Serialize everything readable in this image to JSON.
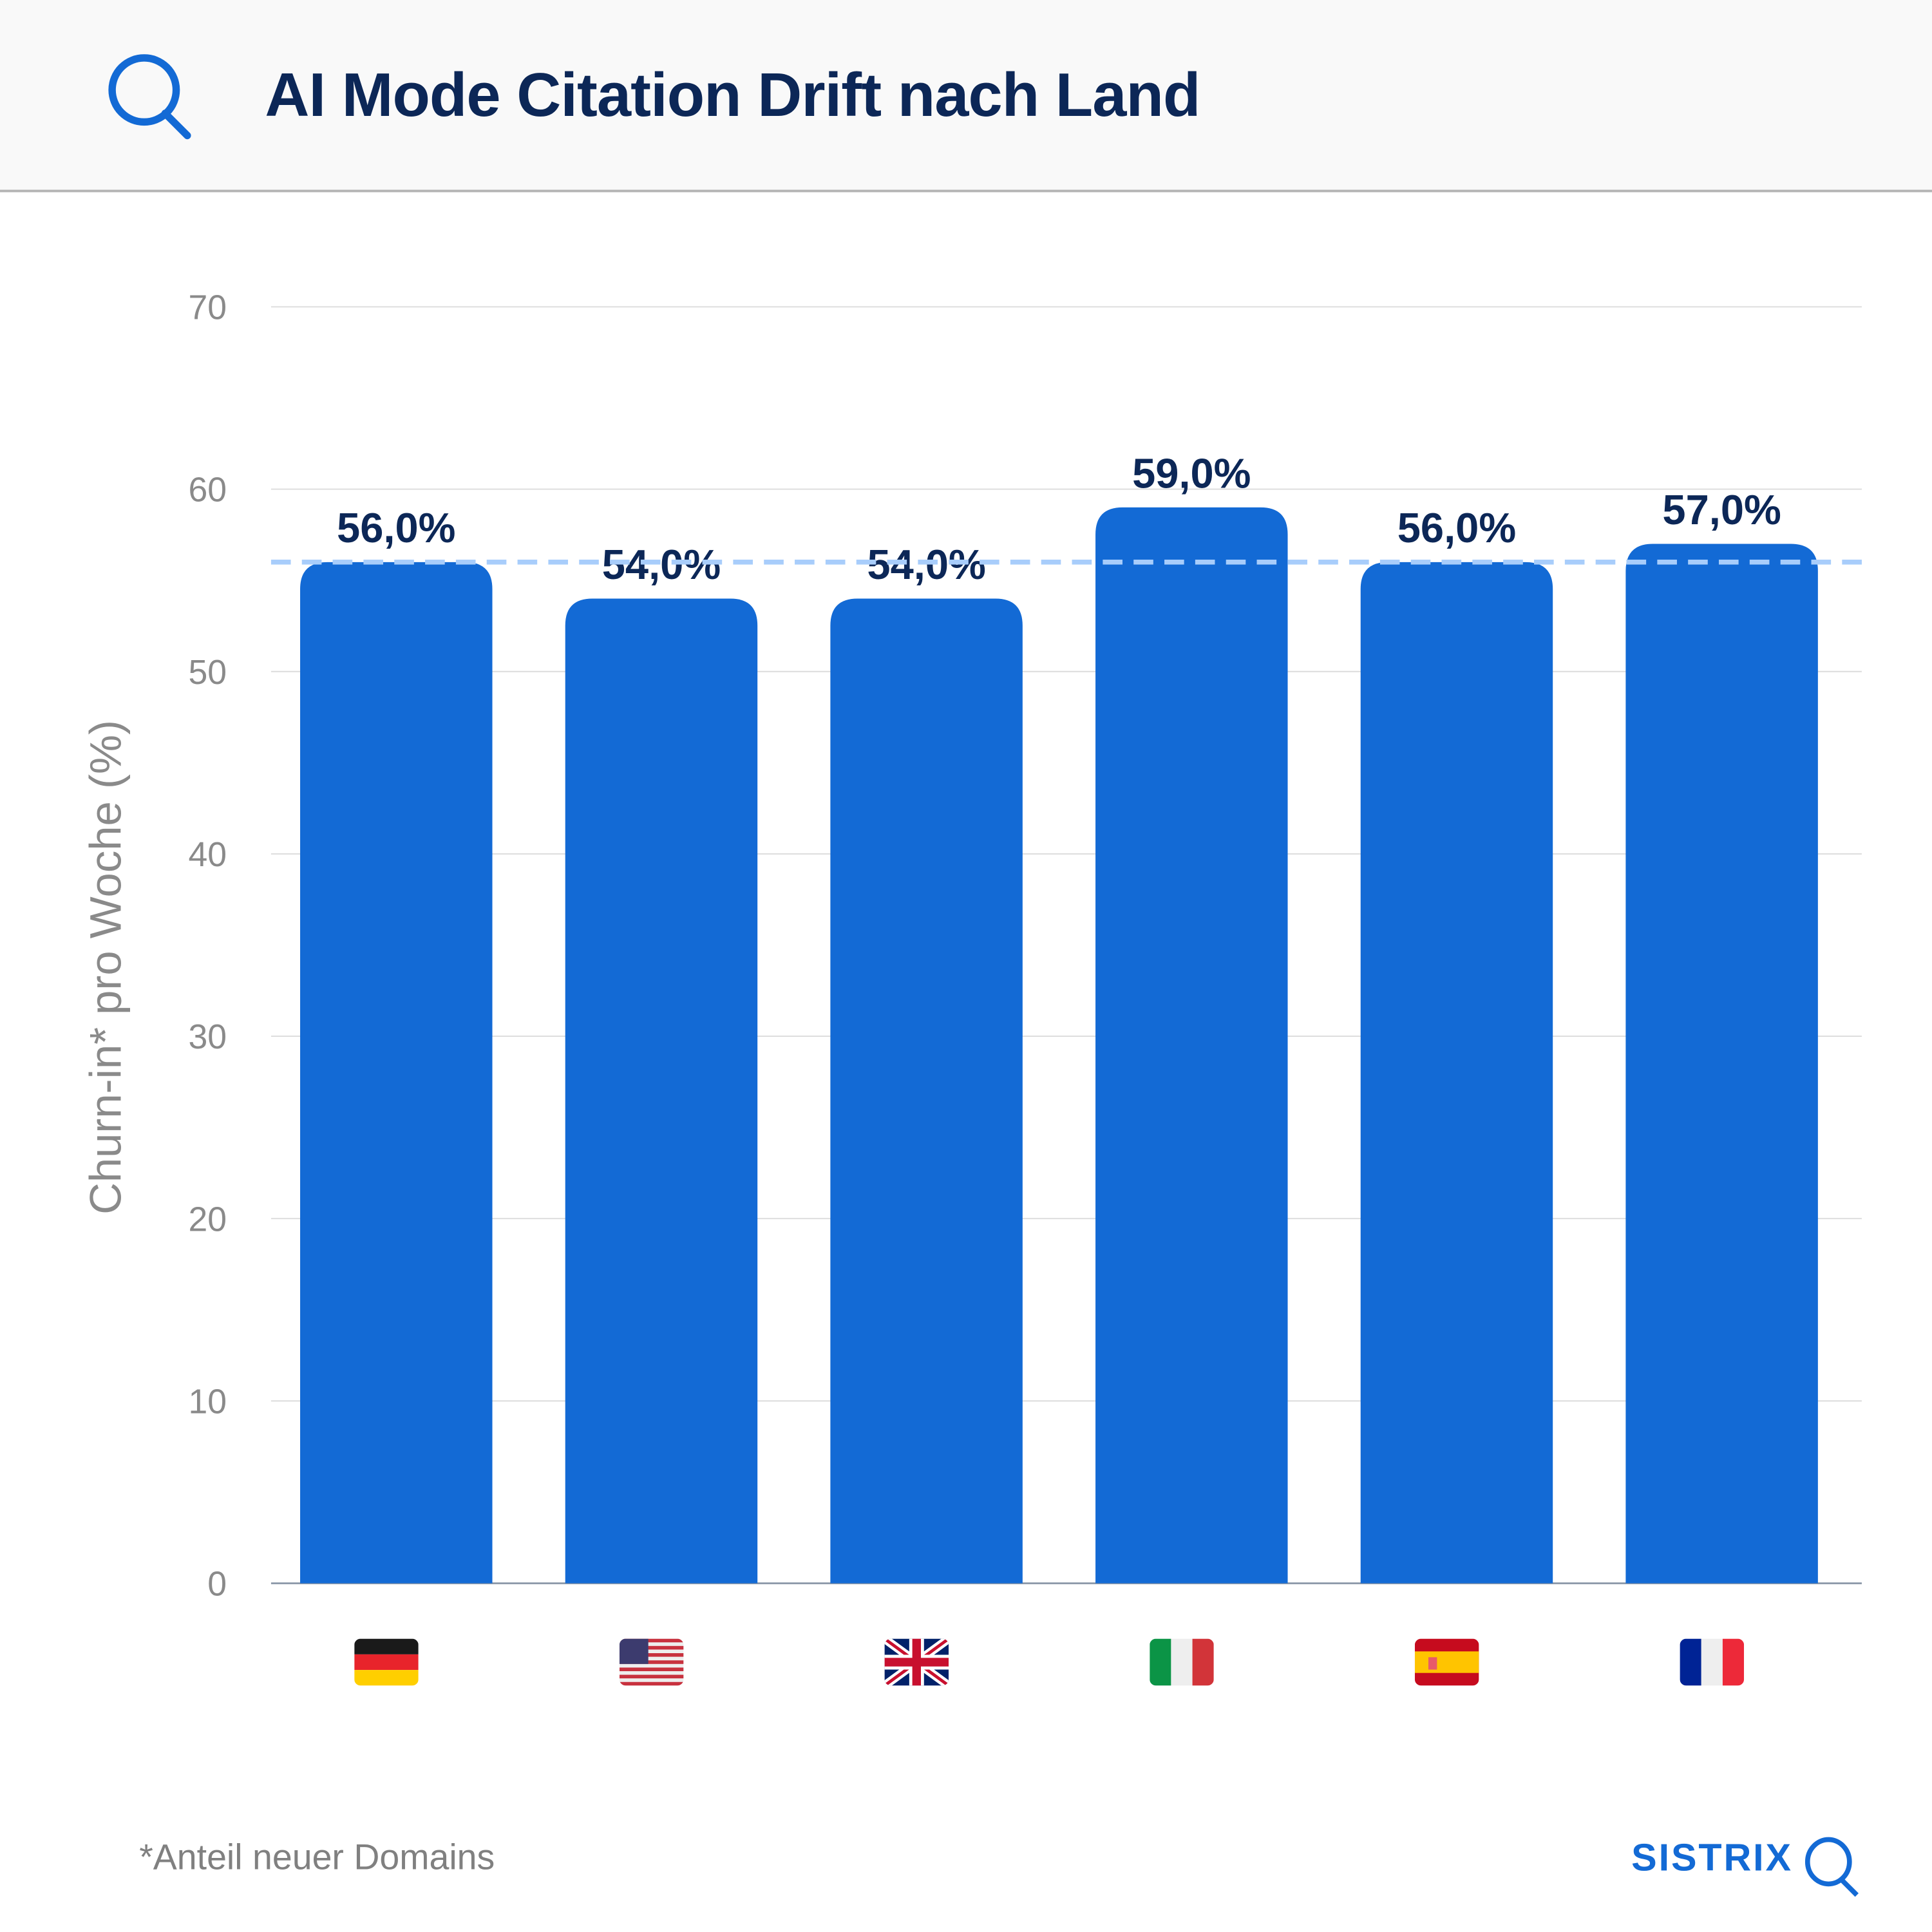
{
  "header": {
    "title": "AI Mode Citation Drift nach Land",
    "icon": "search-icon"
  },
  "chart_data": {
    "type": "bar",
    "title": "AI Mode Citation Drift nach Land",
    "categories": [
      "Deutschland",
      "USA",
      "Vereinigtes Königreich",
      "Italien",
      "Spanien",
      "Frankreich"
    ],
    "category_icons": [
      "flag-de",
      "flag-us",
      "flag-gb",
      "flag-it",
      "flag-es",
      "flag-fr"
    ],
    "values": [
      56.0,
      54.0,
      54.0,
      59.0,
      56.0,
      57.0
    ],
    "data_labels": [
      "56,0%",
      "54,0%",
      "54,0%",
      "59,0%",
      "56,0%",
      "57,0%"
    ],
    "ylabel": "Churn-in* pro Woche (%)",
    "xlabel": "",
    "ylim": [
      0,
      70
    ],
    "yticks": [
      0,
      10,
      20,
      30,
      40,
      50,
      60,
      70
    ],
    "reference_line": {
      "value": 56,
      "style": "dashed",
      "color": "#a8cdfb"
    },
    "grid": true,
    "bar_color": "#136ad5",
    "label_color": "#0c2757"
  },
  "footer": {
    "note": "*Anteil neuer Domains",
    "brand": "SISTRIX"
  }
}
